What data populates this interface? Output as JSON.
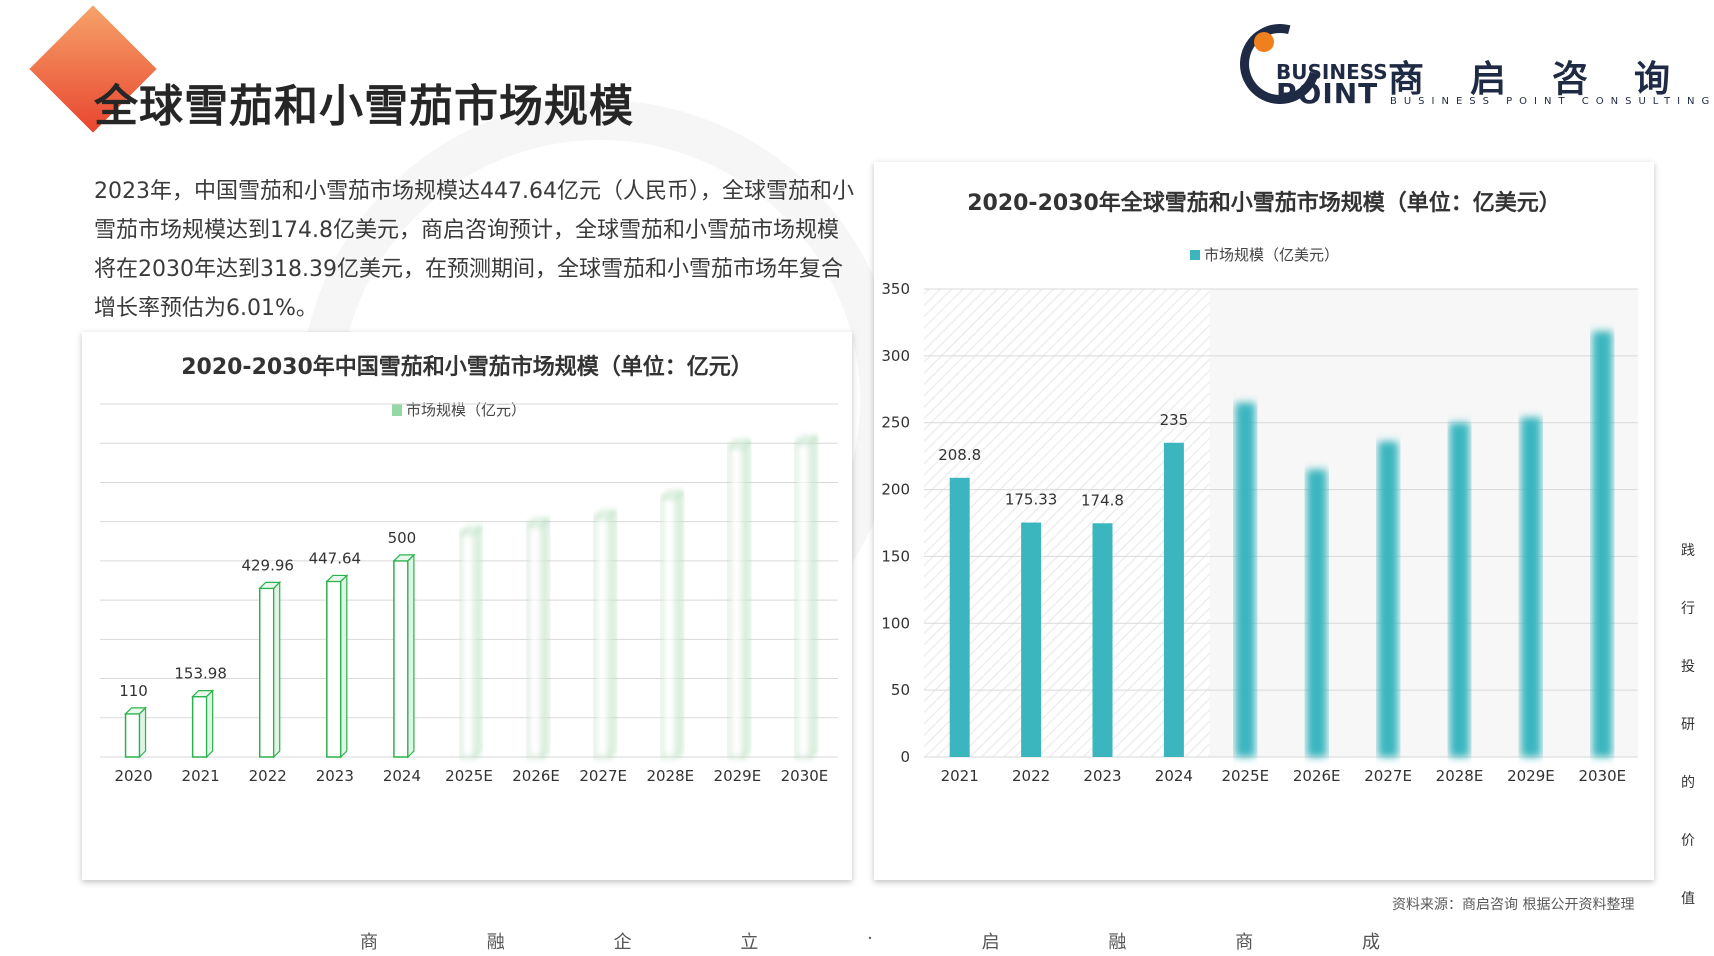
{
  "header": {
    "title": "全球雪茄和小雪茄市场规模",
    "logo_business": "BUSINESS",
    "logo_point": "POINT",
    "logo_cn": "商启咨询",
    "logo_en": "BUSINESS POINT CONSULTING"
  },
  "intro": "2023年，中国雪茄和小雪茄市场规模达447.64亿元（人民币），全球雪茄和小雪茄市场规模达到174.8亿美元，商启咨询预计，全球雪茄和小雪茄市场规模将在2030年达到318.39亿美元，在预测期间，全球雪茄和小雪茄市场年复合增长率预估为6.01%。",
  "source": "资料来源：商启咨询 根据公开资料整理",
  "slogan": [
    "商",
    "融",
    "企",
    "立",
    "·",
    "启",
    "融",
    "商",
    "成"
  ],
  "side_text": [
    "践",
    "行",
    "投",
    "研",
    "的",
    "价",
    "值"
  ],
  "colors": {
    "china_bar": "#2bb24c",
    "global_bar": "#3bb6bf",
    "accent": "#e8452f"
  },
  "chart_data": [
    {
      "type": "bar",
      "title": "2020-2030年中国雪茄和小雪茄市场规模（单位：亿元）",
      "legend": "市场规模（亿元）",
      "categories": [
        "2020",
        "2021",
        "2022",
        "2023",
        "2024",
        "2025E",
        "2026E",
        "2027E",
        "2028E",
        "2029E",
        "2030E"
      ],
      "values": [
        110,
        153.98,
        429.96,
        447.64,
        500,
        570,
        590,
        610,
        660,
        790,
        800
      ],
      "value_labels": [
        "110",
        "153.98",
        "429.96",
        "447.64",
        "500",
        "",
        "",
        "",
        "",
        "",
        ""
      ],
      "ylim": [
        0,
        900
      ],
      "grid": true,
      "legend_position": "top"
    },
    {
      "type": "bar",
      "title": "2020-2030年全球雪茄和小雪茄市场规模（单位：亿美元）",
      "legend": "市场规模（亿美元）",
      "categories": [
        "2021",
        "2022",
        "2023",
        "2024",
        "2025E",
        "2026E",
        "2027E",
        "2028E",
        "2029E",
        "2030E"
      ],
      "values": [
        208.8,
        175.33,
        174.8,
        235,
        265,
        215,
        236,
        250,
        254,
        318.39
      ],
      "value_labels": [
        "208.8",
        "175.33",
        "174.8",
        "235",
        "",
        "",
        "",
        "",
        "",
        ""
      ],
      "yticks": [
        "0",
        "50",
        "100",
        "150",
        "200",
        "250",
        "300",
        "350"
      ],
      "ylim": [
        0,
        350
      ],
      "grid": true,
      "legend_position": "top"
    }
  ]
}
